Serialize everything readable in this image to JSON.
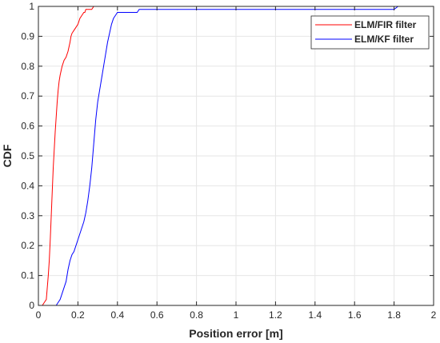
{
  "chart_data": {
    "type": "line",
    "title": "",
    "xlabel": "Position error [m]",
    "ylabel": "CDF",
    "xlim": [
      0,
      2
    ],
    "ylim": [
      0,
      1
    ],
    "xticks": [
      0,
      0.2,
      0.4,
      0.6,
      0.8,
      1,
      1.2,
      1.4,
      1.6,
      1.8,
      2
    ],
    "xtick_labels": [
      "0",
      "0.2",
      "0.4",
      "0.6",
      "0.8",
      "1",
      "1.2",
      "1.4",
      "1.6",
      "1.8",
      "2"
    ],
    "yticks": [
      0,
      0.1,
      0.2,
      0.3,
      0.4,
      0.5,
      0.6,
      0.7,
      0.8,
      0.9,
      1
    ],
    "ytick_labels": [
      "0",
      "0.1",
      "0.2",
      "0.3",
      "0.4",
      "0.5",
      "0.6",
      "0.7",
      "0.8",
      "0.9",
      "1"
    ],
    "grid": true,
    "legend_position": "top-right",
    "series": [
      {
        "name": "ELM/FIR filter",
        "color": "#ff0000",
        "x": [
          0.02,
          0.03,
          0.04,
          0.05,
          0.055,
          0.06,
          0.065,
          0.07,
          0.075,
          0.08,
          0.085,
          0.09,
          0.095,
          0.1,
          0.105,
          0.11,
          0.12,
          0.13,
          0.14,
          0.15,
          0.16,
          0.165,
          0.17,
          0.18,
          0.19,
          0.2,
          0.21,
          0.22,
          0.23,
          0.235,
          0.24,
          0.25,
          0.26,
          0.27,
          0.28
        ],
        "y": [
          0.0,
          0.01,
          0.02,
          0.1,
          0.15,
          0.22,
          0.3,
          0.38,
          0.46,
          0.52,
          0.58,
          0.63,
          0.68,
          0.72,
          0.75,
          0.77,
          0.8,
          0.82,
          0.83,
          0.85,
          0.88,
          0.9,
          0.91,
          0.92,
          0.93,
          0.94,
          0.96,
          0.97,
          0.98,
          0.98,
          0.99,
          0.99,
          0.99,
          0.99,
          1.0
        ]
      },
      {
        "name": "ELM/KF filter",
        "color": "#0000ff",
        "x": [
          0.07,
          0.09,
          0.1,
          0.11,
          0.12,
          0.13,
          0.14,
          0.15,
          0.16,
          0.17,
          0.18,
          0.19,
          0.2,
          0.21,
          0.22,
          0.23,
          0.24,
          0.25,
          0.26,
          0.27,
          0.28,
          0.29,
          0.3,
          0.31,
          0.32,
          0.33,
          0.34,
          0.35,
          0.36,
          0.37,
          0.38,
          0.39,
          0.4,
          0.42,
          0.45,
          0.5,
          0.51,
          0.6,
          0.8,
          1.2,
          1.6,
          1.8,
          1.82,
          1.84
        ],
        "y": [
          0.0,
          0.0,
          0.01,
          0.02,
          0.04,
          0.06,
          0.08,
          0.12,
          0.15,
          0.17,
          0.18,
          0.2,
          0.22,
          0.24,
          0.26,
          0.28,
          0.31,
          0.35,
          0.4,
          0.46,
          0.54,
          0.62,
          0.68,
          0.72,
          0.76,
          0.8,
          0.84,
          0.88,
          0.91,
          0.94,
          0.96,
          0.97,
          0.98,
          0.98,
          0.98,
          0.98,
          0.99,
          0.99,
          0.99,
          0.99,
          0.99,
          0.99,
          1.0,
          1.0
        ]
      }
    ]
  }
}
